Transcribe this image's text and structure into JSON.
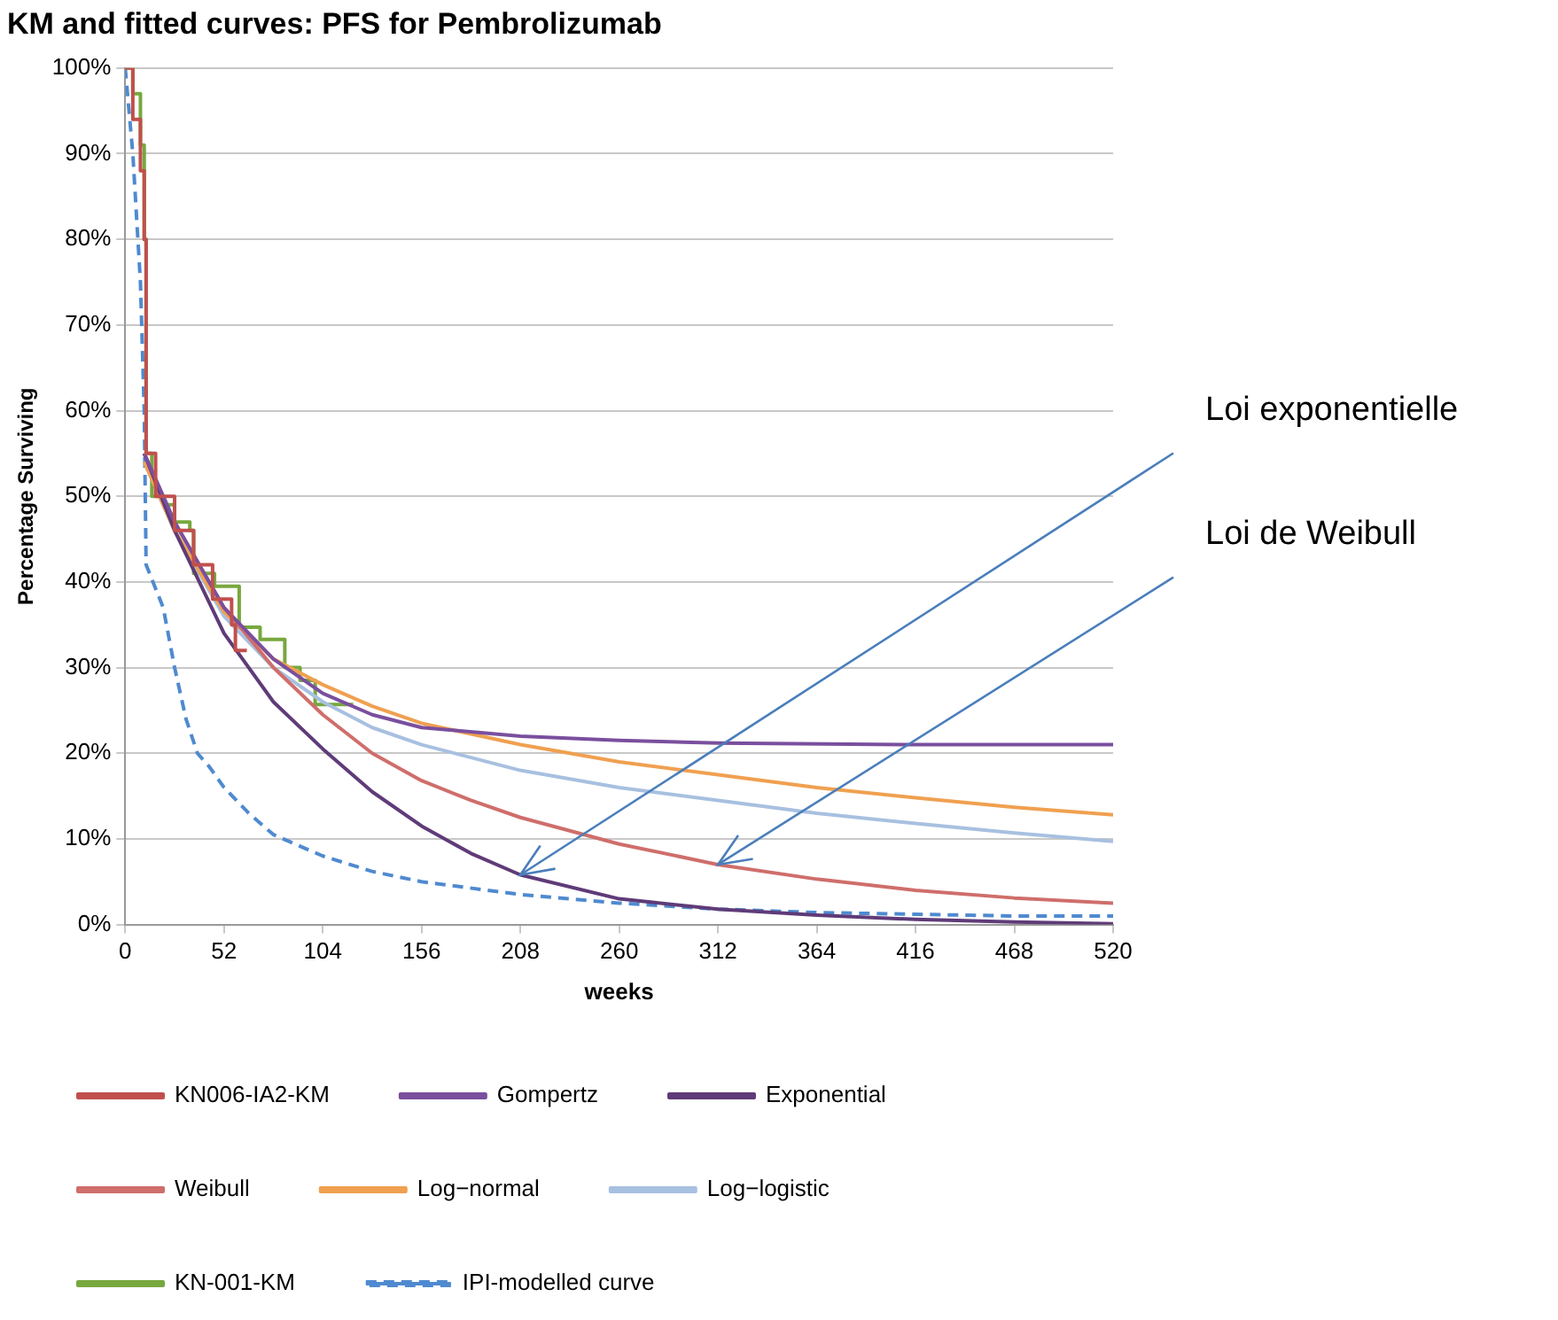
{
  "chart_data": {
    "type": "line",
    "title": "KM and fitted curves: PFS for Pembrolizumab",
    "xlabel": "weeks",
    "ylabel": "Percentage Surviving",
    "xlim": [
      0,
      520
    ],
    "xticks": [
      0,
      52,
      104,
      156,
      208,
      260,
      312,
      364,
      416,
      468,
      520
    ],
    "ylim": [
      0,
      100
    ],
    "yticks": [
      {
        "value": 0,
        "label": "0%"
      },
      {
        "value": 10,
        "label": "10%"
      },
      {
        "value": 20,
        "label": "20%"
      },
      {
        "value": 30,
        "label": "30%"
      },
      {
        "value": 40,
        "label": "40%"
      },
      {
        "value": 50,
        "label": "50%"
      },
      {
        "value": 60,
        "label": "60%"
      },
      {
        "value": 70,
        "label": "70%"
      },
      {
        "value": 80,
        "label": "80%"
      },
      {
        "value": 90,
        "label": "90%"
      },
      {
        "value": 100,
        "label": "100%"
      }
    ],
    "grid": "y",
    "legend": "bottom",
    "marker": "none",
    "series": [
      {
        "name": "KN006-IA2-KM",
        "type": "step",
        "color": "#c0504d",
        "x": [
          0,
          4,
          8,
          10,
          11,
          16,
          26,
          36,
          46,
          56,
          58,
          64
        ],
        "values": [
          100,
          94,
          88,
          80,
          55,
          50,
          46,
          42,
          38,
          35,
          32,
          32
        ]
      },
      {
        "name": "Gompertz",
        "color": "#7a4f9e",
        "x": [
          10,
          26,
          52,
          78,
          104,
          130,
          156,
          208,
          260,
          312,
          416,
          520
        ],
        "values": [
          55,
          47,
          37,
          31,
          27,
          24.5,
          23,
          22,
          21.5,
          21.2,
          21,
          21
        ]
      },
      {
        "name": "Exponential",
        "color": "#5f3b78",
        "x": [
          10,
          26,
          52,
          78,
          104,
          130,
          156,
          182,
          208,
          260,
          312,
          364,
          416,
          468,
          520
        ],
        "values": [
          55,
          46,
          34,
          26,
          20.5,
          15.5,
          11.5,
          8.3,
          5.8,
          3,
          1.8,
          1.1,
          0.6,
          0.3,
          0.1
        ]
      },
      {
        "name": "Weibull",
        "color": "#cf6e6b",
        "x": [
          10,
          26,
          52,
          78,
          104,
          130,
          156,
          182,
          208,
          260,
          312,
          364,
          416,
          468,
          520
        ],
        "values": [
          55,
          47,
          37,
          30,
          24.5,
          20,
          16.8,
          14.5,
          12.5,
          9.4,
          7,
          5.3,
          4,
          3.1,
          2.5
        ]
      },
      {
        "name": "Log−normal",
        "color": "#f0a050",
        "x": [
          10,
          26,
          52,
          78,
          104,
          130,
          156,
          208,
          260,
          312,
          364,
          416,
          468,
          520
        ],
        "values": [
          54,
          46,
          36.5,
          31,
          28,
          25.5,
          23.5,
          21,
          19,
          17.5,
          16,
          14.8,
          13.7,
          12.8
        ]
      },
      {
        "name": "Log−logistic",
        "color": "#a8c0e0",
        "x": [
          10,
          26,
          52,
          78,
          104,
          130,
          156,
          208,
          260,
          312,
          364,
          416,
          468,
          520
        ],
        "values": [
          54,
          46,
          36,
          30,
          26,
          23,
          21,
          18,
          16,
          14.5,
          13,
          11.8,
          10.7,
          9.7
        ]
      },
      {
        "name": "KN-001-KM",
        "type": "step",
        "color": "#77a83e",
        "x": [
          0,
          4,
          8,
          10,
          11,
          14,
          20,
          26,
          34,
          36,
          47,
          60,
          71,
          84,
          92,
          100,
          120
        ],
        "values": [
          100,
          97,
          91,
          80,
          55,
          50,
          49,
          47,
          46,
          41,
          39.5,
          34.7,
          33.3,
          30,
          28.5,
          25.7,
          25.7
        ]
      },
      {
        "name": "IPI-modelled curve",
        "color": "#4f8ad0",
        "line_style": "dashed",
        "x": [
          0,
          4,
          8,
          10,
          11,
          20,
          26,
          32,
          38,
          44,
          52,
          65,
          78,
          104,
          130,
          156,
          208,
          260,
          312,
          364,
          416,
          468,
          520
        ],
        "values": [
          100,
          90,
          75,
          60,
          42,
          37,
          30,
          24,
          20,
          18.5,
          16,
          13,
          10.5,
          8,
          6.2,
          5,
          3.5,
          2.5,
          1.8,
          1.4,
          1.2,
          1,
          1
        ]
      }
    ],
    "annotations": [
      {
        "text": "Loi exponentielle",
        "x": 208,
        "y": 5.8
      },
      {
        "text": "Loi de Weibull",
        "x": 312,
        "y": 7
      }
    ]
  }
}
